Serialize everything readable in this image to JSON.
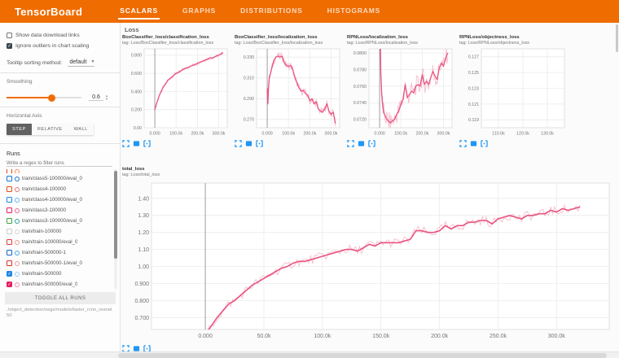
{
  "colors": {
    "accent": "#ef6c00",
    "line_pink": "#e8537f",
    "icon_blue": "#2196f3",
    "step_active_bg": "#616161"
  },
  "icons": {
    "expand": "expand-chart-icon",
    "log_scale": "log-scale-icon",
    "fit_domain": "fit-domain-icon",
    "dropdown": "chevron-down-icon"
  },
  "header": {
    "logo": "TensorBoard",
    "tabs": [
      {
        "label": "SCALARS",
        "active": true
      },
      {
        "label": "GRAPHS",
        "active": false
      },
      {
        "label": "DISTRIBUTIONS",
        "active": false
      },
      {
        "label": "HISTOGRAMS",
        "active": false
      }
    ]
  },
  "sidebar": {
    "checkboxes": [
      {
        "label": "Show data download links",
        "checked": false
      },
      {
        "label": "Ignore outliers in chart scaling",
        "checked": true
      }
    ],
    "tooltip_sorting": {
      "label": "Tooltip sorting method:",
      "value": "default"
    },
    "smoothing": {
      "label": "Smoothing",
      "value": "0.6"
    },
    "horizontal_axis": {
      "label": "Horizontal Axis",
      "options": [
        {
          "label": "STEP",
          "active": true
        },
        {
          "label": "RELATIVE",
          "active": false
        },
        {
          "label": "WALL",
          "active": false
        }
      ]
    },
    "runs_section": {
      "title": "Runs",
      "filter_placeholder": "Write a regex to filter runs",
      "toggle_button": "TOGGLE ALL RUNS",
      "path": "./object_detection/segs/models/faster_rcnn_resnet50"
    },
    "runs": [
      {
        "label": "",
        "checked": false,
        "color": "#e64a19",
        "circle": "#ff8a65",
        "clipped": true
      },
      {
        "label": "train/class5-100000/eval_0",
        "checked": false,
        "color": "#1976d2",
        "circle": "#1976d2"
      },
      {
        "label": "train/class4-100000",
        "checked": false,
        "color": "#e64a19",
        "circle": "#e57373"
      },
      {
        "label": "train/class4-100000/eval_0",
        "checked": false,
        "color": "#1e88e5",
        "circle": "#64b5f6"
      },
      {
        "label": "train/class3-100000",
        "checked": false,
        "color": "#e91e63",
        "circle": "#f06292"
      },
      {
        "label": "train/class3-100000/eval_0",
        "checked": false,
        "color": "#43a047",
        "circle": "#26a69a"
      },
      {
        "label": "train/train-100000",
        "checked": false,
        "color": "#cccccc",
        "circle": "#d6d6d6"
      },
      {
        "label": "train/train-100000/eval_0",
        "checked": false,
        "color": "#e53935",
        "circle": "#ef9a9a"
      },
      {
        "label": "train/train-500000-1",
        "checked": false,
        "color": "#1565c0",
        "circle": "#42a5f5"
      },
      {
        "label": "train/train-500000-1/eval_0",
        "checked": false,
        "color": "#d32f2f",
        "circle": "#ef9a9a"
      },
      {
        "label": "train/train-500000",
        "checked": true,
        "color": "#1e88e5",
        "circle": "#90caf9"
      },
      {
        "label": "train/train-500000/eval_0",
        "checked": true,
        "color": "#e91e63",
        "circle": "#f48fb1"
      }
    ]
  },
  "main": {
    "section_title": "Loss"
  },
  "chart_data": [
    {
      "type": "line",
      "title": "BoxClassifier_loss/classification_loss",
      "tag": "tag: Loss/BoxClassifier_loss/classification_loss",
      "xlim": [
        -50000,
        340000
      ],
      "ylim": [
        0.0,
        0.87
      ],
      "xticks": [
        0,
        100000,
        200000,
        300000
      ],
      "xtick_labels": [
        "0.000",
        "100.0k",
        "200.0k",
        "300.0k"
      ],
      "yticks": [
        0.0,
        0.2,
        0.4,
        0.6,
        0.8
      ],
      "ytick_labels": [
        "0.00",
        "0.200",
        "0.400",
        "0.600",
        "0.800"
      ],
      "zero_line": true,
      "series": [
        {
          "name": "train/train-500000/eval_0",
          "color": "#e8537f",
          "noise": 0.018,
          "x": [
            0,
            5,
            10,
            20,
            30,
            40,
            50,
            60,
            70,
            80,
            90,
            100,
            110,
            120,
            130,
            140,
            150,
            160,
            170,
            180,
            190,
            200,
            210,
            220,
            230,
            240,
            250,
            260,
            270,
            280,
            290,
            300,
            310,
            320
          ],
          "y": [
            0.2,
            0.24,
            0.28,
            0.35,
            0.4,
            0.45,
            0.48,
            0.52,
            0.54,
            0.56,
            0.58,
            0.6,
            0.61,
            0.62,
            0.64,
            0.65,
            0.66,
            0.67,
            0.68,
            0.69,
            0.7,
            0.71,
            0.72,
            0.73,
            0.74,
            0.75,
            0.76,
            0.77,
            0.77,
            0.78,
            0.79,
            0.8,
            0.81,
            0.83
          ]
        }
      ]
    },
    {
      "type": "line",
      "title": "BoxClassifier_loss/localization_loss",
      "tag": "tag: Loss/BoxClassifier_loss/localization_loss",
      "xlim": [
        -50000,
        340000
      ],
      "ylim": [
        0.262,
        0.338
      ],
      "xticks": [
        0,
        100000,
        200000,
        300000
      ],
      "xtick_labels": [
        "0.000",
        "100.0k",
        "200.0k",
        "300.0k"
      ],
      "yticks": [
        0.27,
        0.29,
        0.31,
        0.33
      ],
      "ytick_labels": [
        "0.270",
        "0.290",
        "0.310",
        "0.330"
      ],
      "zero_line": true,
      "series": [
        {
          "name": "train/train-500000/eval_0",
          "color": "#e8537f",
          "noise": 0.004,
          "x": [
            0,
            3,
            6,
            10,
            20,
            30,
            40,
            50,
            60,
            70,
            80,
            90,
            100,
            110,
            120,
            130,
            140,
            150,
            160,
            170,
            180,
            190,
            200,
            210,
            220,
            230,
            240,
            250,
            260,
            270,
            280,
            290,
            300,
            310,
            320
          ],
          "y": [
            0.3,
            0.285,
            0.3,
            0.31,
            0.318,
            0.326,
            0.33,
            0.331,
            0.33,
            0.331,
            0.325,
            0.322,
            0.321,
            0.322,
            0.318,
            0.31,
            0.305,
            0.3,
            0.297,
            0.298,
            0.295,
            0.293,
            0.288,
            0.29,
            0.285,
            0.287,
            0.28,
            0.278,
            0.277,
            0.28,
            0.285,
            0.278,
            0.275,
            0.277,
            0.266
          ]
        }
      ]
    },
    {
      "type": "line",
      "title": "RPNLoss/localization_loss",
      "tag": "tag: Loss/RPNLoss/localization_loss",
      "xlim": [
        -50000,
        340000
      ],
      "ylim": [
        0.071,
        0.0805
      ],
      "xticks": [
        0,
        100000,
        200000,
        300000
      ],
      "xtick_labels": [
        "0.000",
        "100.0k",
        "200.0k",
        "300.0k"
      ],
      "yticks": [
        0.072,
        0.074,
        0.076,
        0.078,
        0.08
      ],
      "ytick_labels": [
        "0.0720",
        "0.0740",
        "0.0760",
        "0.0780",
        "0.0800"
      ],
      "zero_line": true,
      "series": [
        {
          "name": "train/train-500000/eval_0",
          "color": "#e8537f",
          "noise": 0.0012,
          "x": [
            0,
            3,
            6,
            10,
            15,
            20,
            30,
            40,
            50,
            60,
            70,
            80,
            90,
            100,
            110,
            120,
            130,
            140,
            150,
            160,
            170,
            180,
            190,
            200,
            210,
            220,
            230,
            240,
            250,
            260,
            270,
            280,
            290,
            300,
            310,
            320
          ],
          "y": [
            0.092,
            0.082,
            0.0775,
            0.075,
            0.0735,
            0.0728,
            0.0722,
            0.0718,
            0.0716,
            0.0718,
            0.072,
            0.0726,
            0.073,
            0.0738,
            0.0744,
            0.0762,
            0.0746,
            0.075,
            0.0754,
            0.0752,
            0.076,
            0.0762,
            0.076,
            0.0774,
            0.0762,
            0.0766,
            0.0762,
            0.077,
            0.0778,
            0.0772,
            0.0768,
            0.0782,
            0.0788,
            0.0784,
            0.0794,
            0.08
          ]
        }
      ]
    },
    {
      "type": "line",
      "title": "RPNLoss/objectness_loss",
      "tag": "tag: Loss/RPNLoss/objectness_loss",
      "xlim": [
        103000,
        137000
      ],
      "ylim": [
        0.118,
        0.128
      ],
      "xticks": [
        110000,
        120000,
        130000
      ],
      "xtick_labels": [
        "110.0k",
        "120.0k",
        "130.0k"
      ],
      "yticks": [
        0.119,
        0.121,
        0.123,
        0.125,
        0.127
      ],
      "ytick_labels": [
        "0.119",
        "0.121",
        "0.123",
        "0.125",
        "0.127"
      ],
      "zero_line": false,
      "series": []
    },
    {
      "type": "line",
      "title": "total_loss",
      "tag": "tag: Loss/total_loss",
      "xlim": [
        -46000,
        345000
      ],
      "ylim": [
        0.63,
        1.49
      ],
      "xticks": [
        0,
        50000,
        100000,
        150000,
        200000,
        250000,
        300000
      ],
      "xtick_labels": [
        "0.000",
        "50.0k",
        "100.0k",
        "150.0k",
        "200.0k",
        "250.0k",
        "300.0k"
      ],
      "yticks": [
        0.7,
        0.8,
        0.9,
        1.0,
        1.1,
        1.2,
        1.3,
        1.4
      ],
      "ytick_labels": [
        "0.700",
        "0.800",
        "0.900",
        "1.00",
        "1.10",
        "1.20",
        "1.30",
        "1.40"
      ],
      "zero_line": true,
      "series": [
        {
          "name": "train/train-500000/eval_0",
          "color": "#e8537f",
          "noise": 0.028,
          "x": [
            0,
            5,
            10,
            15,
            20,
            25,
            30,
            35,
            40,
            45,
            50,
            55,
            60,
            65,
            70,
            75,
            80,
            85,
            90,
            95,
            100,
            105,
            110,
            115,
            120,
            125,
            130,
            135,
            140,
            145,
            150,
            155,
            160,
            165,
            170,
            175,
            180,
            185,
            190,
            195,
            200,
            205,
            210,
            215,
            220,
            225,
            230,
            235,
            240,
            245,
            250,
            255,
            260,
            265,
            270,
            275,
            280,
            285,
            290,
            295,
            300,
            305,
            310,
            315,
            320
          ],
          "y": [
            0.6,
            0.65,
            0.7,
            0.74,
            0.78,
            0.8,
            0.83,
            0.86,
            0.89,
            0.91,
            0.93,
            0.95,
            0.97,
            0.99,
            1.0,
            1.02,
            1.03,
            1.03,
            1.04,
            1.05,
            1.06,
            1.07,
            1.08,
            1.09,
            1.1,
            1.1,
            1.09,
            1.11,
            1.13,
            1.12,
            1.14,
            1.14,
            1.14,
            1.14,
            1.15,
            1.16,
            1.21,
            1.21,
            1.2,
            1.2,
            1.21,
            1.24,
            1.22,
            1.24,
            1.24,
            1.26,
            1.26,
            1.27,
            1.27,
            1.25,
            1.28,
            1.29,
            1.3,
            1.29,
            1.28,
            1.3,
            1.3,
            1.31,
            1.31,
            1.33,
            1.32,
            1.34,
            1.33,
            1.34,
            1.35
          ]
        }
      ]
    }
  ]
}
